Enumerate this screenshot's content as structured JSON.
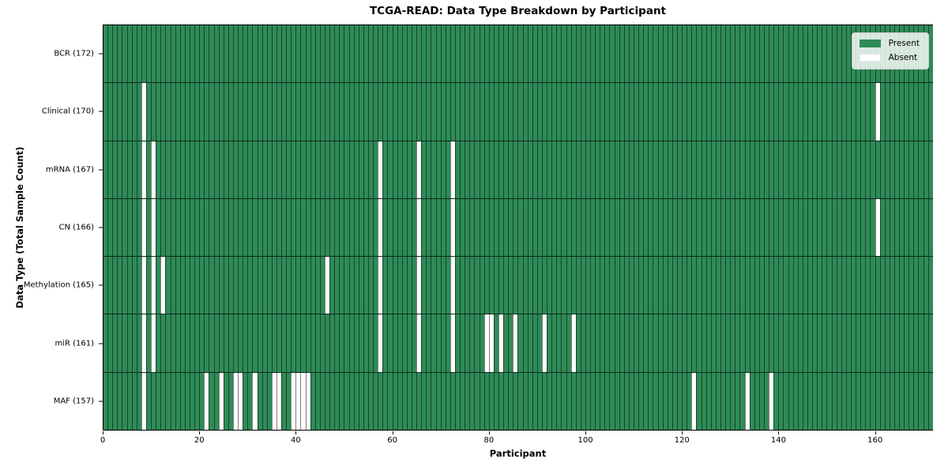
{
  "colors": {
    "present": "#2e8b57",
    "absent": "#ffffff",
    "cell_border": "#00000080",
    "row_border": "#000000b3",
    "spine": "#000000",
    "legend_bg": "#ffffffd0",
    "legend_border": "#cccccc"
  },
  "chart_data": {
    "type": "heatmap",
    "title": "TCGA-READ: Data Type Breakdown by Participant",
    "xlabel": "Participant",
    "ylabel": "Data Type (Total Sample Count)",
    "n_participants": 172,
    "grid": true,
    "legend_position": "upper right",
    "x_axis": {
      "range": [
        0,
        172
      ],
      "ticks": [
        0,
        20,
        40,
        60,
        80,
        100,
        120,
        140,
        160
      ]
    },
    "legend": [
      {
        "label": "Present",
        "color": "#2e8b57"
      },
      {
        "label": "Absent",
        "color": "#ffffff"
      }
    ],
    "rows": [
      {
        "name": "BCR",
        "label": "BCR (172)",
        "total": 172,
        "absent_participants": []
      },
      {
        "name": "Clinical",
        "label": "Clinical (170)",
        "total": 170,
        "absent_participants": [
          8,
          160
        ]
      },
      {
        "name": "mRNA",
        "label": "mRNA (167)",
        "total": 167,
        "absent_participants": [
          8,
          10,
          57,
          65,
          72
        ]
      },
      {
        "name": "CN",
        "label": "CN (166)",
        "total": 166,
        "absent_participants": [
          8,
          10,
          57,
          65,
          72,
          160
        ]
      },
      {
        "name": "Methylation",
        "label": "Methylation (165)",
        "total": 165,
        "absent_participants": [
          8,
          10,
          12,
          46,
          57,
          65,
          72
        ]
      },
      {
        "name": "miR",
        "label": "miR (161)",
        "total": 161,
        "absent_participants": [
          8,
          10,
          57,
          65,
          72,
          79,
          80,
          82,
          85,
          91,
          97
        ]
      },
      {
        "name": "MAF",
        "label": "MAF (157)",
        "total": 157,
        "absent_participants": [
          8,
          21,
          24,
          27,
          28,
          31,
          35,
          36,
          39,
          40,
          41,
          42,
          122,
          133,
          138
        ]
      }
    ]
  }
}
